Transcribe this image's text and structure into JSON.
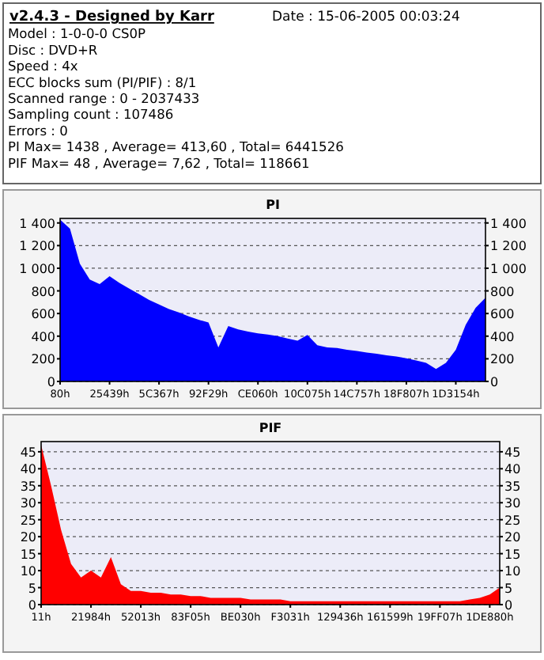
{
  "chart_data": [
    {
      "type": "other",
      "title": "v2.4.3 - Designed by Karr",
      "annotations": [
        "Date : 15-06-2005 00:03:24",
        "Model : 1-0-0-0 CS0P",
        "Disc : DVD+R",
        "Speed : 4x",
        "ECC blocks sum (PI/PIF) : 8/1",
        "Scanned range : 0 - 2037433",
        "Sampling count : 107486",
        "Errors : 0",
        "PI Max= 1438 , Average= 413,60 , Total= 6441526",
        "PIF Max= 48 , Average= 7,62 , Total= 118661"
      ]
    },
    {
      "type": "area",
      "title": "PI",
      "grid": "y",
      "categories": [
        "80h",
        null,
        null,
        null,
        null,
        "25439h",
        null,
        null,
        null,
        null,
        "5C367h",
        null,
        null,
        null,
        null,
        "92F29h",
        null,
        null,
        null,
        null,
        "CE060h",
        null,
        null,
        null,
        null,
        "10C075h",
        null,
        null,
        null,
        null,
        "14C757h",
        null,
        null,
        null,
        null,
        "18F807h",
        null,
        null,
        null,
        null,
        "1D3154h",
        null,
        null,
        null
      ],
      "ylim": [
        0,
        1440
      ],
      "yticks": [
        0,
        200,
        400,
        600,
        800,
        {
          "value": 1000,
          "label": "1 000"
        },
        {
          "value": 1200,
          "label": "1 200"
        },
        {
          "value": 1400,
          "label": "1 400"
        }
      ],
      "y2lim": [
        0,
        1440
      ],
      "y2ticks": [
        0,
        200,
        400,
        600,
        800,
        {
          "value": 1000,
          "label": "1 000"
        },
        {
          "value": 1200,
          "label": "1 200"
        },
        {
          "value": 1400,
          "label": "1 400"
        }
      ],
      "series": [
        {
          "color": "#0000ff",
          "values": [
            1430,
            1350,
            1040,
            900,
            860,
            930,
            870,
            820,
            770,
            720,
            680,
            640,
            610,
            575,
            545,
            520,
            300,
            490,
            460,
            440,
            425,
            415,
            400,
            380,
            360,
            410,
            320,
            300,
            295,
            280,
            270,
            255,
            245,
            230,
            220,
            205,
            185,
            165,
            110,
            165,
            280,
            500,
            650,
            740
          ]
        }
      ]
    },
    {
      "type": "area",
      "title": "PIF",
      "grid": "y",
      "categories": [
        "11h",
        null,
        null,
        null,
        null,
        "21984h",
        null,
        null,
        null,
        null,
        "52013h",
        null,
        null,
        null,
        null,
        "83F05h",
        null,
        null,
        null,
        null,
        "BE030h",
        null,
        null,
        null,
        null,
        "F3031h",
        null,
        null,
        null,
        null,
        "129436h",
        null,
        null,
        null,
        null,
        "161599h",
        null,
        null,
        null,
        null,
        "19FF07h",
        null,
        null,
        null,
        null,
        "1DE880h",
        null
      ],
      "ylim": [
        0,
        48
      ],
      "yticks": [
        0,
        5,
        10,
        15,
        20,
        25,
        30,
        35,
        40,
        45
      ],
      "y2lim": [
        0,
        48
      ],
      "y2ticks": [
        0,
        5,
        10,
        15,
        20,
        25,
        30,
        35,
        40,
        45
      ],
      "series": [
        {
          "color": "#ff0000",
          "values": [
            47,
            35,
            22,
            12,
            8,
            10,
            8,
            14,
            6,
            4,
            4,
            3.5,
            3.5,
            3,
            3,
            2.5,
            2.5,
            2,
            2,
            2,
            2,
            1.5,
            1.5,
            1.5,
            1.5,
            1,
            1,
            1,
            1,
            1,
            1,
            1,
            1,
            1,
            1,
            1,
            1,
            1,
            1,
            1,
            1,
            1,
            1,
            1.5,
            2,
            3,
            5
          ]
        }
      ]
    }
  ]
}
